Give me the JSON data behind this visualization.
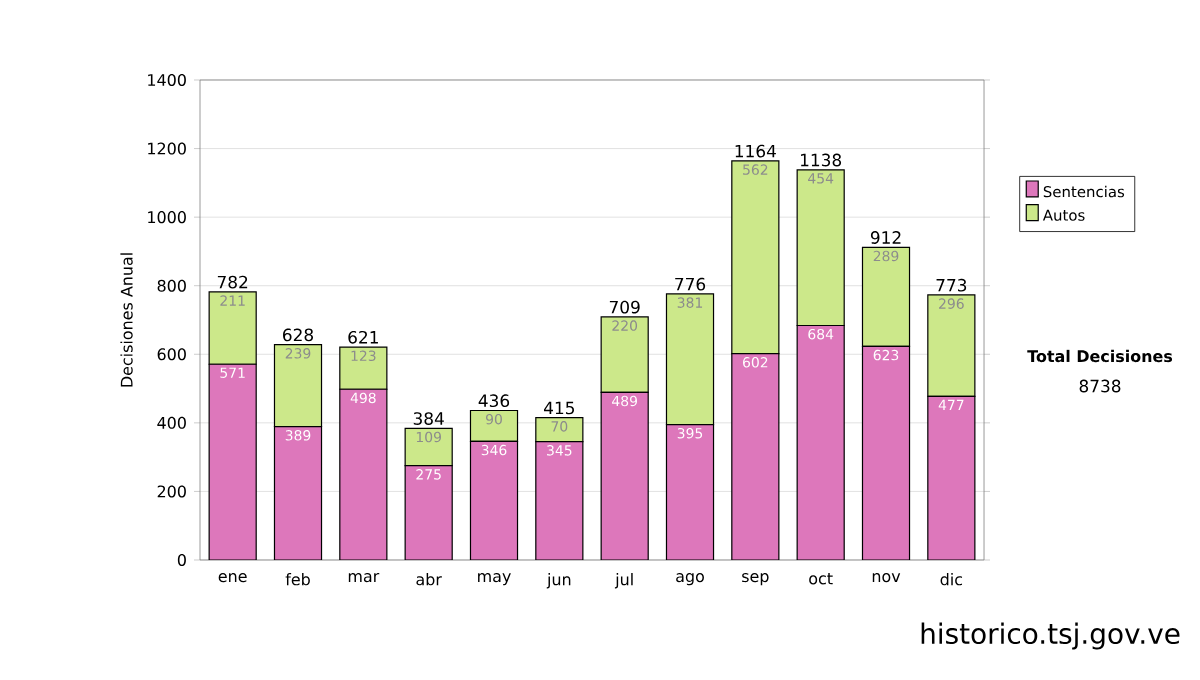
{
  "chart_data": {
    "type": "bar",
    "stacked": true,
    "ylabel": "Decisiones Anual",
    "categories": [
      "ene",
      "feb",
      "mar",
      "abr",
      "may",
      "jun",
      "jul",
      "ago",
      "sep",
      "oct",
      "nov",
      "dic"
    ],
    "series": [
      {
        "name": "Sentencias",
        "color": "#dd77bb",
        "values": [
          571,
          389,
          498,
          275,
          346,
          345,
          489,
          395,
          602,
          684,
          623,
          477
        ]
      },
      {
        "name": "Autos",
        "color": "#cce88a",
        "values": [
          211,
          239,
          123,
          109,
          90,
          70,
          220,
          381,
          562,
          454,
          289,
          296
        ]
      }
    ],
    "totals": [
      "782",
      "628",
      "621",
      "384",
      "436",
      "415",
      "709",
      "776",
      "1164",
      "1138",
      "912",
      "773"
    ],
    "data_labels": true,
    "ylim": [
      0,
      1400
    ],
    "yticks": [
      0,
      200,
      400,
      600,
      800,
      1000,
      1200,
      1400
    ],
    "grid": "y",
    "legend": "right",
    "annotations": [
      "**Total Decisiones**",
      "8738",
      "historico.tsj.gov.ve"
    ]
  }
}
